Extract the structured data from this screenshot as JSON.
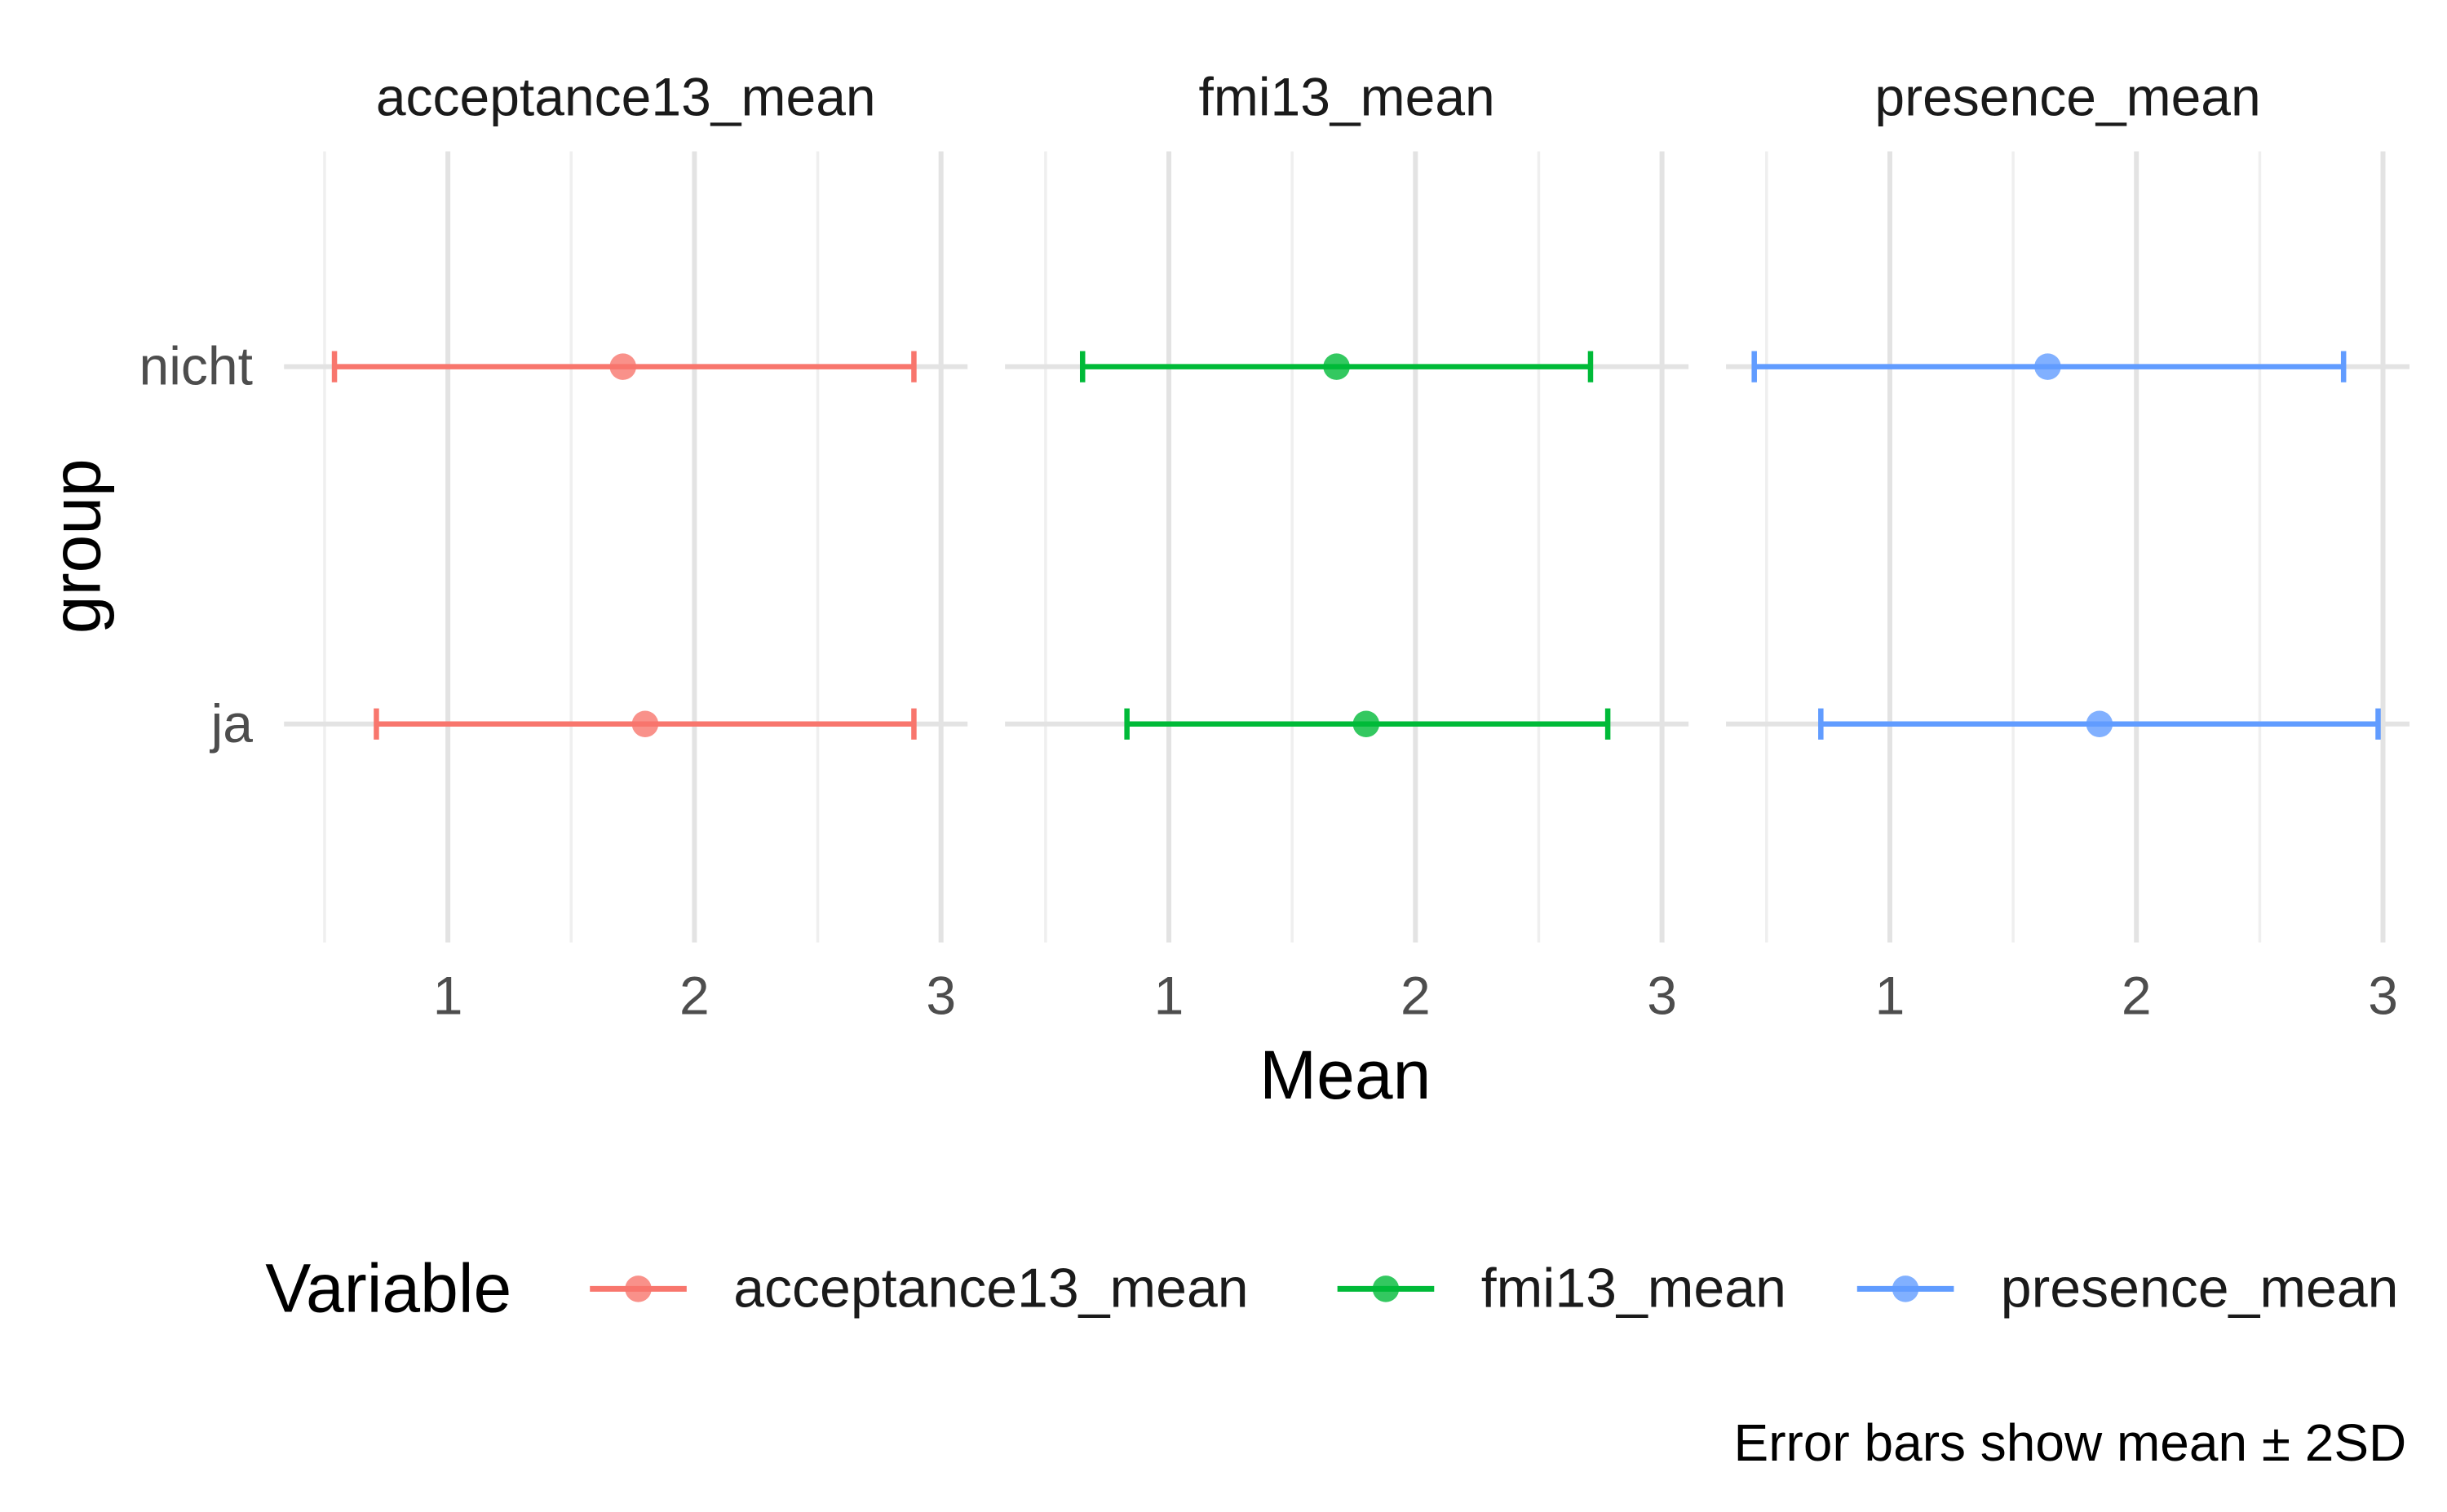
{
  "chart_data": {
    "type": "errorbar",
    "xlabel": "Mean",
    "ylabel": "group",
    "xlim": [
      0.5,
      3.0
    ],
    "x_ticks": [
      1,
      2,
      3
    ],
    "categories": [
      "nicht",
      "ja"
    ],
    "legend_title": "Variable",
    "legend_position": "bottom",
    "caption": "Error bars show mean ± 2SD",
    "panels": [
      {
        "name": "acceptance13_mean",
        "color": "#F8766D",
        "points": [
          {
            "group": "nicht",
            "mean": 1.71,
            "lo": 0.54,
            "hi": 2.89
          },
          {
            "group": "ja",
            "mean": 1.8,
            "lo": 0.71,
            "hi": 2.89
          }
        ]
      },
      {
        "name": "fmi13_mean",
        "color": "#00BA38",
        "points": [
          {
            "group": "nicht",
            "mean": 1.68,
            "lo": 0.65,
            "hi": 2.71
          },
          {
            "group": "ja",
            "mean": 1.8,
            "lo": 0.83,
            "hi": 2.78
          }
        ]
      },
      {
        "name": "presence_mean",
        "color": "#619CFF",
        "points": [
          {
            "group": "nicht",
            "mean": 1.64,
            "lo": 0.45,
            "hi": 2.84
          },
          {
            "group": "ja",
            "mean": 1.85,
            "lo": 0.72,
            "hi": 2.98
          }
        ]
      }
    ]
  }
}
